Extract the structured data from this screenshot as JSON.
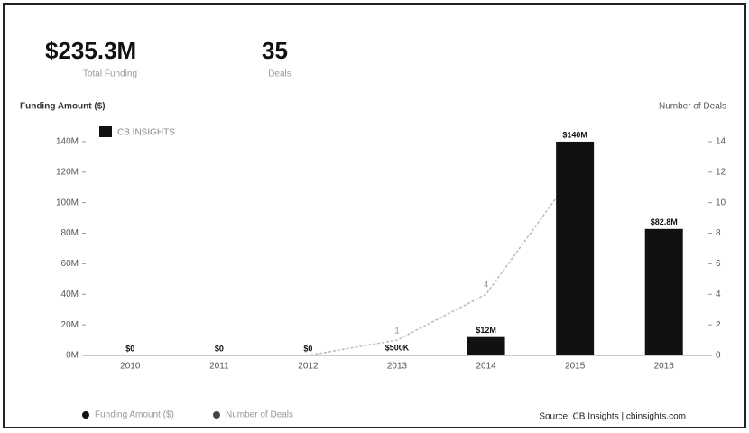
{
  "chart_data": {
    "type": "bar",
    "kpis": [
      {
        "value": "$235.3M",
        "label": "Total Funding"
      },
      {
        "value": "35",
        "label": "Deals"
      }
    ],
    "ylabel": "Funding Amount ($)",
    "y2label": "Number of Deals",
    "logo": "CB INSIGHTS",
    "categories": [
      "2010",
      "2011",
      "2012",
      "2013",
      "2014",
      "2015",
      "2016"
    ],
    "series": [
      {
        "name": "Funding Amount ($)",
        "color": "#111111",
        "values": [
          0,
          0,
          0,
          0.5,
          12,
          140,
          82.8
        ],
        "value_labels": [
          "$0",
          "$0",
          "$0",
          "$500K",
          "$12M",
          "$140M",
          "$82.8M"
        ]
      },
      {
        "name": "Number of Deals",
        "color": "#bbbbbb",
        "axis": "y2",
        "type": "line",
        "values": [
          0,
          0,
          0,
          1,
          4,
          12,
          null
        ],
        "value_labels": [
          null,
          null,
          null,
          "1",
          "4",
          null,
          null
        ]
      }
    ],
    "ylim": [
      0,
      150
    ],
    "yticks": [
      {
        "value": 0,
        "label": "0M"
      },
      {
        "value": 20,
        "label": "20M"
      },
      {
        "value": 40,
        "label": "40M"
      },
      {
        "value": 60,
        "label": "60M"
      },
      {
        "value": 80,
        "label": "80M"
      },
      {
        "value": 100,
        "label": "100M"
      },
      {
        "value": 120,
        "label": "120M"
      },
      {
        "value": 140,
        "label": "140M"
      }
    ],
    "y2lim": [
      0,
      15
    ],
    "y2ticks": [
      0,
      2,
      4,
      6,
      8,
      10,
      12,
      14
    ],
    "source": "Source: CB Insights | cbinsights.com"
  }
}
